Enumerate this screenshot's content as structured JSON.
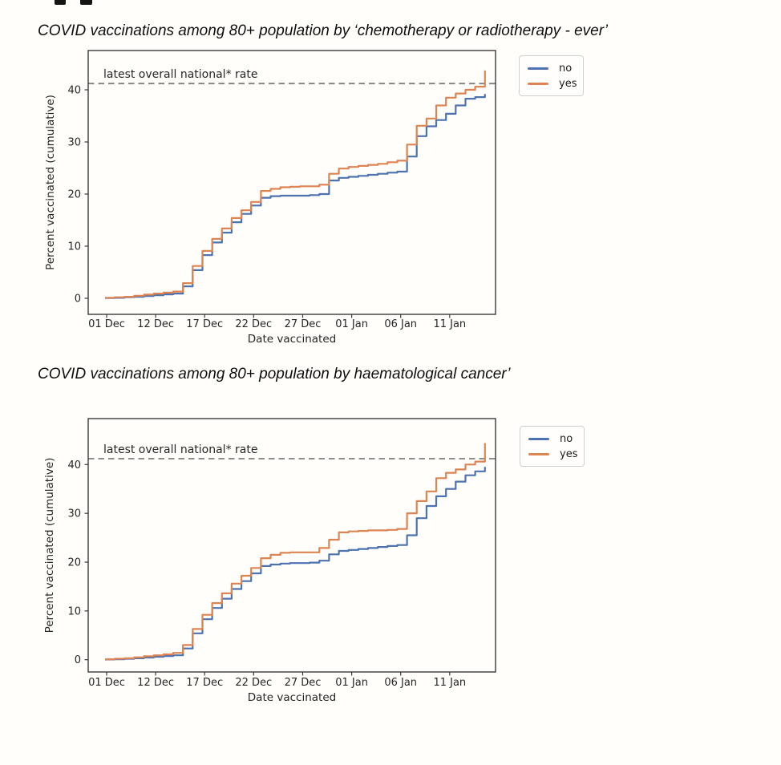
{
  "page": {
    "background": "#fffefa"
  },
  "chart_data": [
    {
      "type": "line",
      "step": true,
      "title": "COVID vaccinations among 80+ population by ‘chemotherapy or radiotherapy - ever’",
      "xlabel": "Date vaccinated",
      "ylabel": "Percent vaccinated (cumulative)",
      "ylim": [
        0,
        47.5
      ],
      "yticks": [
        0,
        10,
        20,
        30,
        40
      ],
      "x_tick_labels": [
        "01 Dec",
        "12 Dec",
        "17 Dec",
        "22 Dec",
        "27 Dec",
        "01 Jan",
        "06 Jan",
        "11 Jan"
      ],
      "grid": false,
      "legend_position": "right of plot",
      "reference_line": {
        "label": "latest overall national* rate",
        "value": 41.2,
        "style": "dashed",
        "color": "#7f7f7f"
      },
      "dates": [
        "08 Dec",
        "09 Dec",
        "10 Dec",
        "11 Dec",
        "12 Dec",
        "13 Dec",
        "14 Dec",
        "15 Dec",
        "16 Dec",
        "17 Dec",
        "18 Dec",
        "19 Dec",
        "20 Dec",
        "21 Dec",
        "22 Dec",
        "23 Dec",
        "24 Dec",
        "25 Dec",
        "26 Dec",
        "27 Dec",
        "28 Dec",
        "29 Dec",
        "30 Dec",
        "31 Dec",
        "01 Jan",
        "02 Jan",
        "03 Jan",
        "04 Jan",
        "05 Jan",
        "06 Jan",
        "07 Jan",
        "08 Jan",
        "09 Jan",
        "10 Jan",
        "11 Jan",
        "12 Jan",
        "13 Jan",
        "14 Jan",
        "15 Jan",
        "16 Jan"
      ],
      "series": [
        {
          "name": "no",
          "color": "#4c72b0",
          "values": [
            0.05,
            0.1,
            0.2,
            0.3,
            0.45,
            0.6,
            0.75,
            0.9,
            2.3,
            5.4,
            8.3,
            10.7,
            12.6,
            14.6,
            16.2,
            17.8,
            19.3,
            19.6,
            19.7,
            19.7,
            19.7,
            19.8,
            20.0,
            22.6,
            23.1,
            23.3,
            23.5,
            23.7,
            23.9,
            24.1,
            24.3,
            27.2,
            31.1,
            33.0,
            34.2,
            35.4,
            37.0,
            38.3,
            38.6,
            39.2
          ]
        },
        {
          "name": "yes",
          "color": "#dd8452",
          "values": [
            0.1,
            0.2,
            0.3,
            0.5,
            0.7,
            0.9,
            1.1,
            1.3,
            2.9,
            6.2,
            9.1,
            11.4,
            13.4,
            15.4,
            16.9,
            18.5,
            20.6,
            21.0,
            21.3,
            21.4,
            21.5,
            21.5,
            21.8,
            23.9,
            24.9,
            25.2,
            25.4,
            25.6,
            25.8,
            26.1,
            26.4,
            29.5,
            33.1,
            34.5,
            37.0,
            38.5,
            39.3,
            40.0,
            40.6,
            43.7
          ]
        }
      ]
    },
    {
      "type": "line",
      "step": true,
      "title": "COVID vaccinations among 80+ population by haematological cancer’",
      "xlabel": "Date vaccinated",
      "ylabel": "Percent vaccinated (cumulative)",
      "ylim": [
        0,
        49
      ],
      "yticks": [
        0,
        10,
        20,
        30,
        40
      ],
      "x_tick_labels": [
        "01 Dec",
        "12 Dec",
        "17 Dec",
        "22 Dec",
        "27 Dec",
        "01 Jan",
        "06 Jan",
        "11 Jan"
      ],
      "grid": false,
      "legend_position": "right of plot",
      "reference_line": {
        "label": "latest overall national* rate",
        "value": 41.2,
        "style": "dashed",
        "color": "#7f7f7f"
      },
      "dates": [
        "08 Dec",
        "09 Dec",
        "10 Dec",
        "11 Dec",
        "12 Dec",
        "13 Dec",
        "14 Dec",
        "15 Dec",
        "16 Dec",
        "17 Dec",
        "18 Dec",
        "19 Dec",
        "20 Dec",
        "21 Dec",
        "22 Dec",
        "23 Dec",
        "24 Dec",
        "25 Dec",
        "26 Dec",
        "27 Dec",
        "28 Dec",
        "29 Dec",
        "30 Dec",
        "31 Dec",
        "01 Jan",
        "02 Jan",
        "03 Jan",
        "04 Jan",
        "05 Jan",
        "06 Jan",
        "07 Jan",
        "08 Jan",
        "09 Jan",
        "10 Jan",
        "11 Jan",
        "12 Jan",
        "13 Jan",
        "14 Jan",
        "15 Jan",
        "16 Jan"
      ],
      "series": [
        {
          "name": "no",
          "color": "#4c72b0",
          "values": [
            0.05,
            0.1,
            0.2,
            0.3,
            0.45,
            0.6,
            0.75,
            0.9,
            2.3,
            5.4,
            8.3,
            10.6,
            12.5,
            14.5,
            16.1,
            17.7,
            19.2,
            19.5,
            19.7,
            19.8,
            19.8,
            19.9,
            20.3,
            21.6,
            22.3,
            22.5,
            22.7,
            22.9,
            23.1,
            23.3,
            23.5,
            25.5,
            29.0,
            31.5,
            33.5,
            35.0,
            36.5,
            37.8,
            38.6,
            39.5
          ]
        },
        {
          "name": "yes",
          "color": "#dd8452",
          "values": [
            0.1,
            0.2,
            0.3,
            0.5,
            0.7,
            0.9,
            1.1,
            1.4,
            3.0,
            6.3,
            9.2,
            11.6,
            13.6,
            15.6,
            17.2,
            18.8,
            20.8,
            21.5,
            21.9,
            22.0,
            22.0,
            22.0,
            22.9,
            24.6,
            26.1,
            26.3,
            26.4,
            26.5,
            26.5,
            26.6,
            26.8,
            30.0,
            32.5,
            34.5,
            37.2,
            38.3,
            39.0,
            40.0,
            40.6,
            44.4
          ]
        }
      ]
    }
  ]
}
